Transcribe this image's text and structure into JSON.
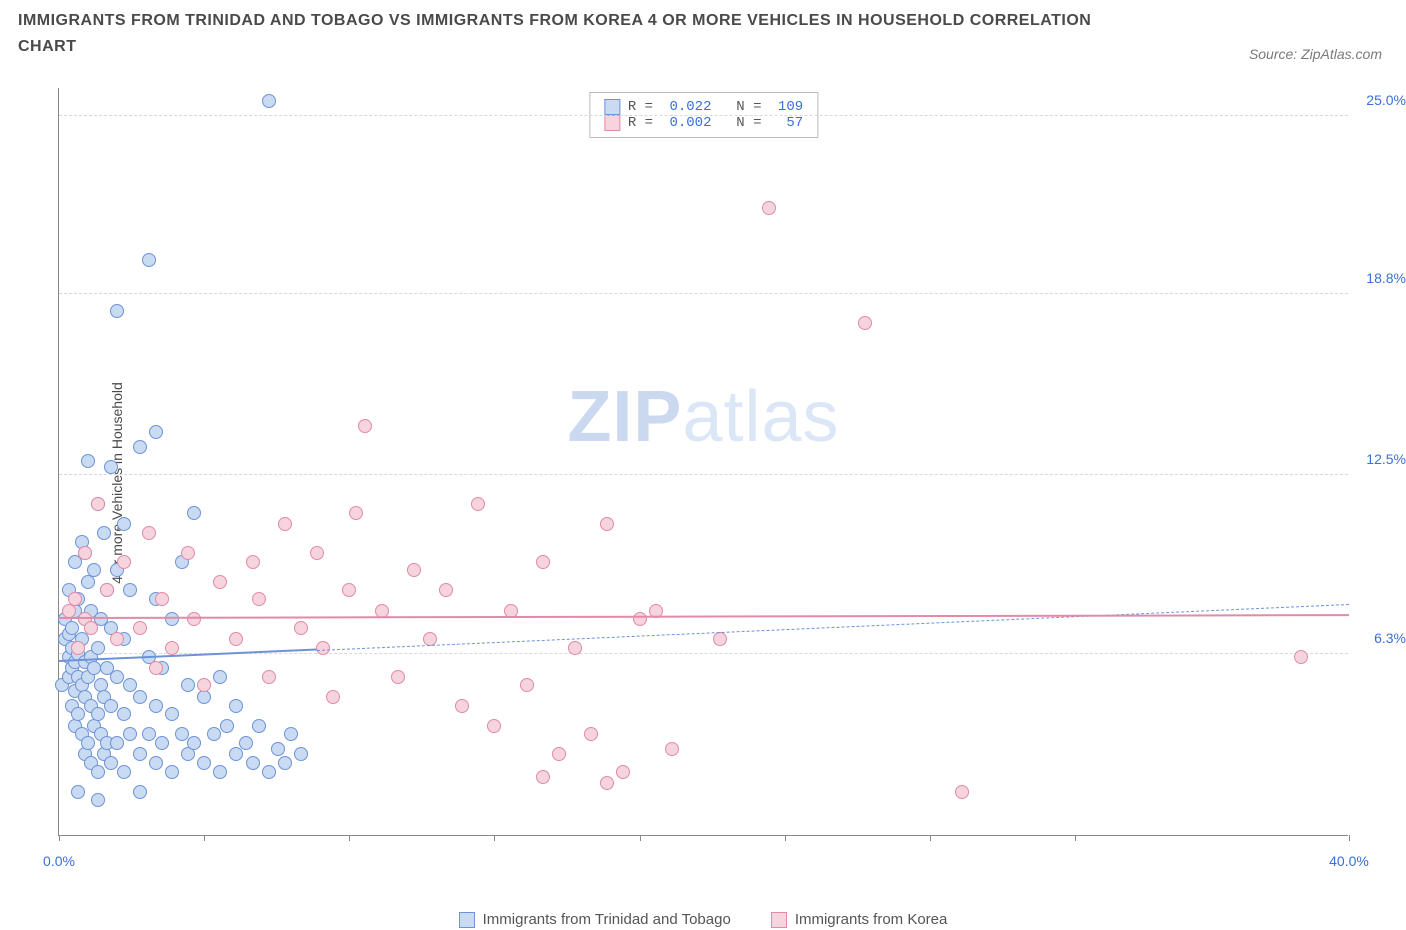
{
  "title": "IMMIGRANTS FROM TRINIDAD AND TOBAGO VS IMMIGRANTS FROM KOREA 4 OR MORE VEHICLES IN HOUSEHOLD CORRELATION CHART",
  "source": "Source: ZipAtlas.com",
  "yaxis_label": "4 or more Vehicles in Household",
  "watermark_a": "ZIP",
  "watermark_b": "atlas",
  "chart": {
    "type": "scatter",
    "xlim": [
      0,
      40
    ],
    "ylim": [
      0,
      26
    ],
    "x_ticks": [
      0,
      4.5,
      9,
      13.5,
      18,
      22.5,
      27,
      31.5,
      40
    ],
    "x_tick_labels": {
      "0": "0.0%",
      "40": "40.0%"
    },
    "y_ticks": [
      6.3,
      12.5,
      18.8,
      25.0
    ],
    "y_tick_labels": [
      "6.3%",
      "12.5%",
      "18.8%",
      "25.0%"
    ],
    "grid_color": "#d8d8d8",
    "axis_color": "#888888",
    "background": "#ffffff",
    "point_radius": 7,
    "series": [
      {
        "name": "Immigrants from Trinidad and Tobago",
        "stroke": "#6d93d6",
        "fill": "#c9daf3",
        "R": "0.022",
        "N": "109",
        "trend_solid": {
          "x1": 0,
          "y1": 6.0,
          "x2": 8,
          "y2": 6.4
        },
        "trend_dash": {
          "x1": 8,
          "y1": 6.4,
          "x2": 40,
          "y2": 8.0
        },
        "points": [
          [
            0.1,
            5.2
          ],
          [
            0.2,
            6.8
          ],
          [
            0.2,
            7.5
          ],
          [
            0.3,
            5.5
          ],
          [
            0.3,
            6.2
          ],
          [
            0.3,
            7.0
          ],
          [
            0.3,
            8.5
          ],
          [
            0.4,
            4.5
          ],
          [
            0.4,
            5.8
          ],
          [
            0.4,
            6.5
          ],
          [
            0.4,
            7.2
          ],
          [
            0.5,
            3.8
          ],
          [
            0.5,
            5.0
          ],
          [
            0.5,
            6.0
          ],
          [
            0.5,
            7.8
          ],
          [
            0.5,
            9.5
          ],
          [
            0.6,
            4.2
          ],
          [
            0.6,
            5.5
          ],
          [
            0.6,
            6.3
          ],
          [
            0.6,
            8.2
          ],
          [
            0.7,
            3.5
          ],
          [
            0.7,
            5.2
          ],
          [
            0.7,
            6.8
          ],
          [
            0.7,
            10.2
          ],
          [
            0.8,
            2.8
          ],
          [
            0.8,
            4.8
          ],
          [
            0.8,
            6.0
          ],
          [
            0.8,
            7.5
          ],
          [
            0.8,
            9.8
          ],
          [
            0.9,
            3.2
          ],
          [
            0.9,
            5.5
          ],
          [
            0.9,
            8.8
          ],
          [
            0.9,
            13.0
          ],
          [
            1.0,
            2.5
          ],
          [
            1.0,
            4.5
          ],
          [
            1.0,
            6.2
          ],
          [
            1.0,
            7.8
          ],
          [
            1.1,
            3.8
          ],
          [
            1.1,
            5.8
          ],
          [
            1.1,
            9.2
          ],
          [
            1.2,
            2.2
          ],
          [
            1.2,
            4.2
          ],
          [
            1.2,
            6.5
          ],
          [
            1.2,
            11.5
          ],
          [
            1.3,
            3.5
          ],
          [
            1.3,
            5.2
          ],
          [
            1.3,
            7.5
          ],
          [
            1.4,
            2.8
          ],
          [
            1.4,
            4.8
          ],
          [
            1.4,
            10.5
          ],
          [
            1.5,
            3.2
          ],
          [
            1.5,
            5.8
          ],
          [
            1.5,
            8.5
          ],
          [
            1.6,
            2.5
          ],
          [
            1.6,
            4.5
          ],
          [
            1.6,
            7.2
          ],
          [
            1.6,
            12.8
          ],
          [
            1.8,
            3.2
          ],
          [
            1.8,
            5.5
          ],
          [
            1.8,
            9.2
          ],
          [
            1.8,
            18.2
          ],
          [
            2.0,
            2.2
          ],
          [
            2.0,
            4.2
          ],
          [
            2.0,
            6.8
          ],
          [
            2.0,
            10.8
          ],
          [
            2.2,
            3.5
          ],
          [
            2.2,
            5.2
          ],
          [
            2.2,
            8.5
          ],
          [
            2.5,
            2.8
          ],
          [
            2.5,
            4.8
          ],
          [
            2.5,
            13.5
          ],
          [
            2.8,
            3.5
          ],
          [
            2.8,
            6.2
          ],
          [
            3.0,
            2.5
          ],
          [
            3.0,
            4.5
          ],
          [
            3.0,
            8.2
          ],
          [
            3.2,
            3.2
          ],
          [
            3.2,
            5.8
          ],
          [
            3.5,
            2.2
          ],
          [
            3.5,
            4.2
          ],
          [
            3.5,
            7.5
          ],
          [
            3.8,
            3.5
          ],
          [
            3.8,
            9.5
          ],
          [
            4.0,
            2.8
          ],
          [
            4.0,
            5.2
          ],
          [
            4.2,
            3.2
          ],
          [
            4.2,
            11.2
          ],
          [
            4.5,
            2.5
          ],
          [
            4.5,
            4.8
          ],
          [
            4.8,
            3.5
          ],
          [
            5.0,
            2.2
          ],
          [
            5.0,
            5.5
          ],
          [
            5.2,
            3.8
          ],
          [
            5.5,
            2.8
          ],
          [
            5.5,
            4.5
          ],
          [
            5.8,
            3.2
          ],
          [
            6.0,
            2.5
          ],
          [
            6.2,
            3.8
          ],
          [
            6.5,
            2.2
          ],
          [
            6.5,
            25.5
          ],
          [
            6.8,
            3.0
          ],
          [
            7.0,
            2.5
          ],
          [
            7.2,
            3.5
          ],
          [
            7.5,
            2.8
          ],
          [
            2.8,
            20.0
          ],
          [
            3.0,
            14.0
          ],
          [
            0.6,
            1.5
          ],
          [
            1.2,
            1.2
          ],
          [
            2.5,
            1.5
          ]
        ]
      },
      {
        "name": "Immigrants from Korea",
        "stroke": "#e28aa8",
        "fill": "#f6d4de",
        "R": "0.002",
        "N": " 57",
        "trend_solid": {
          "x1": 0,
          "y1": 7.5,
          "x2": 40,
          "y2": 7.6
        },
        "trend_dash": null,
        "points": [
          [
            0.3,
            7.8
          ],
          [
            0.5,
            8.2
          ],
          [
            0.6,
            6.5
          ],
          [
            0.8,
            7.5
          ],
          [
            0.8,
            9.8
          ],
          [
            1.0,
            7.2
          ],
          [
            1.2,
            11.5
          ],
          [
            1.5,
            8.5
          ],
          [
            1.8,
            6.8
          ],
          [
            2.0,
            9.5
          ],
          [
            2.5,
            7.2
          ],
          [
            2.8,
            10.5
          ],
          [
            3.0,
            5.8
          ],
          [
            3.2,
            8.2
          ],
          [
            3.5,
            6.5
          ],
          [
            4.0,
            9.8
          ],
          [
            4.2,
            7.5
          ],
          [
            4.5,
            5.2
          ],
          [
            5.0,
            8.8
          ],
          [
            5.5,
            6.8
          ],
          [
            6.0,
            9.5
          ],
          [
            6.2,
            8.2
          ],
          [
            6.5,
            5.5
          ],
          [
            7.0,
            10.8
          ],
          [
            7.5,
            7.2
          ],
          [
            8.0,
            9.8
          ],
          [
            8.2,
            6.5
          ],
          [
            8.5,
            4.8
          ],
          [
            9.0,
            8.5
          ],
          [
            9.2,
            11.2
          ],
          [
            9.5,
            14.2
          ],
          [
            10.0,
            7.8
          ],
          [
            10.5,
            5.5
          ],
          [
            11.0,
            9.2
          ],
          [
            11.5,
            6.8
          ],
          [
            12.0,
            8.5
          ],
          [
            12.5,
            4.5
          ],
          [
            13.0,
            11.5
          ],
          [
            13.5,
            3.8
          ],
          [
            14.0,
            7.8
          ],
          [
            14.5,
            5.2
          ],
          [
            15.0,
            9.5
          ],
          [
            15.5,
            2.8
          ],
          [
            16.0,
            6.5
          ],
          [
            16.5,
            3.5
          ],
          [
            17.0,
            10.8
          ],
          [
            17.5,
            2.2
          ],
          [
            18.0,
            7.5
          ],
          [
            18.5,
            7.8
          ],
          [
            22.0,
            21.8
          ],
          [
            25.0,
            17.8
          ],
          [
            28.0,
            1.5
          ],
          [
            19.0,
            3.0
          ],
          [
            20.5,
            6.8
          ],
          [
            38.5,
            6.2
          ],
          [
            15.0,
            2.0
          ],
          [
            17.0,
            1.8
          ]
        ]
      }
    ]
  },
  "legend_bottom": [
    "Immigrants from Trinidad and Tobago",
    "Immigrants from Korea"
  ]
}
